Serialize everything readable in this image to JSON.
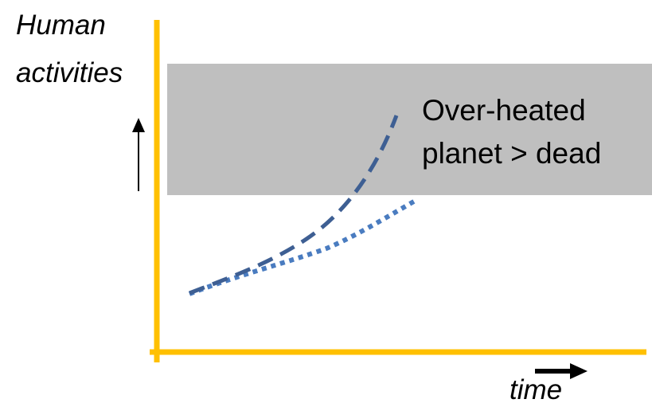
{
  "diagram": {
    "y_axis_label": [
      "Human",
      "activities"
    ],
    "x_axis_label": "time",
    "zone_label": [
      "Over-heated",
      "planet > dead"
    ],
    "colors": {
      "axis": "#FFC000",
      "zone": "#BFBFBF",
      "dashed_curve": "#3E5F93",
      "dotted_curve": "#4A7CC0",
      "arrow": "#000000"
    },
    "curves": [
      {
        "style": "dashed",
        "shape": "exponential"
      },
      {
        "style": "dotted",
        "shape": "gradual"
      }
    ]
  }
}
